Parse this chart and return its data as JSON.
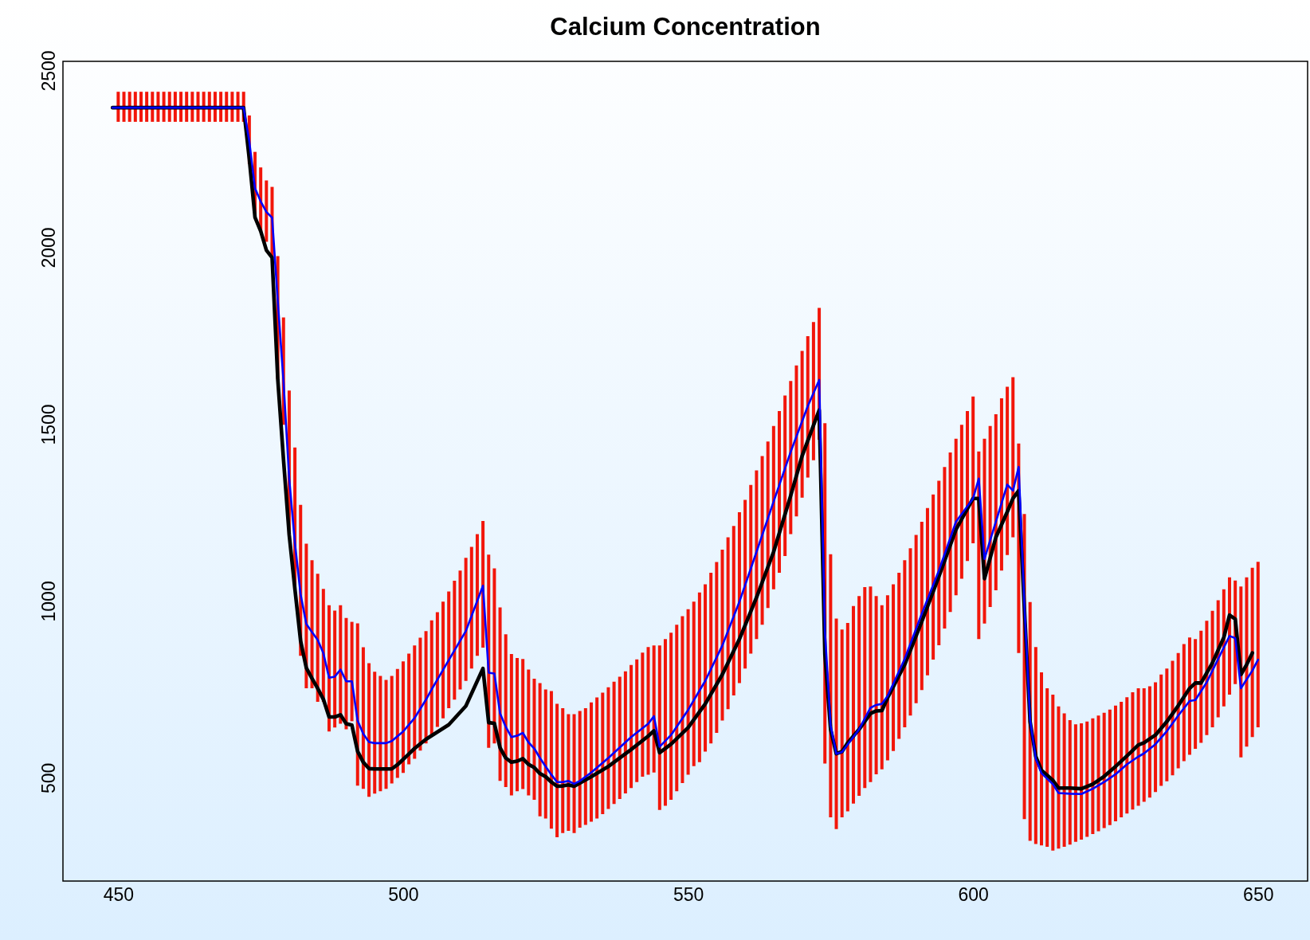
{
  "chart_data": {
    "type": "line",
    "title": "Calcium Concentration",
    "xlim": [
      441,
      658
    ],
    "ylim": [
      208,
      2526
    ],
    "xticks": [
      450,
      500,
      550,
      600,
      650
    ],
    "yticks": [
      500,
      1000,
      1500,
      2000,
      2500
    ],
    "grid": false,
    "marker": "none",
    "line_style": "solid",
    "series": [
      {
        "type": "bar",
        "color": "#f2160a",
        "x": [
          450,
          451,
          452,
          453,
          454,
          455,
          456,
          457,
          458,
          459,
          460,
          461,
          462,
          463,
          464,
          465,
          466,
          467,
          468,
          469,
          470,
          471,
          472,
          473,
          474,
          475,
          476,
          477,
          478,
          479,
          480,
          481,
          482,
          483,
          484,
          485,
          486,
          487,
          488,
          489,
          490,
          491,
          492,
          493,
          494,
          495,
          496,
          497,
          498,
          499,
          500,
          501,
          502,
          503,
          504,
          505,
          506,
          507,
          508,
          509,
          510,
          511,
          512,
          513,
          514,
          515,
          516,
          517,
          518,
          519,
          520,
          521,
          522,
          523,
          524,
          525,
          526,
          527,
          528,
          529,
          530,
          531,
          532,
          533,
          534,
          535,
          536,
          537,
          538,
          539,
          540,
          541,
          542,
          543,
          544,
          545,
          546,
          547,
          548,
          549,
          550,
          551,
          552,
          553,
          554,
          555,
          556,
          557,
          558,
          559,
          560,
          561,
          562,
          563,
          564,
          565,
          566,
          567,
          568,
          569,
          570,
          571,
          572,
          573,
          574,
          575,
          576,
          577,
          578,
          579,
          580,
          581,
          582,
          583,
          584,
          585,
          586,
          587,
          588,
          589,
          590,
          591,
          592,
          593,
          594,
          595,
          596,
          597,
          598,
          599,
          600,
          601,
          602,
          603,
          604,
          605,
          606,
          607,
          608,
          609,
          610,
          611,
          612,
          613,
          614,
          615,
          616,
          617,
          618,
          619,
          620,
          621,
          622,
          623,
          624,
          625,
          626,
          627,
          628,
          629,
          630,
          631,
          632,
          633,
          634,
          635,
          636,
          637,
          638,
          639,
          640,
          641,
          642,
          643,
          644,
          645,
          646,
          647,
          648,
          649,
          650
        ],
        "base": [
          2355,
          2355,
          2355,
          2355,
          2355,
          2355,
          2355,
          2355,
          2355,
          2355,
          2355,
          2355,
          2355,
          2355,
          2355,
          2355,
          2355,
          2355,
          2355,
          2355,
          2355,
          2355,
          2355,
          2236,
          2084,
          2046,
          2016,
          1971,
          1628,
          1498,
          1187,
          1034,
          845,
          753,
          753,
          715,
          715,
          631,
          642,
          653,
          637,
          660,
          478,
          469,
          446,
          455,
          462,
          469,
          484,
          500,
          514,
          538,
          554,
          577,
          597,
          621,
          644,
          668,
          697,
          721,
          750,
          774,
          809,
          845,
          868,
          585,
          597,
          491,
          474,
          450,
          462,
          468,
          450,
          438,
          391,
          385,
          356,
          332,
          344,
          350,
          344,
          359,
          367,
          376,
          385,
          397,
          412,
          426,
          440,
          456,
          471,
          488,
          503,
          509,
          515,
          409,
          421,
          438,
          462,
          485,
          509,
          533,
          544,
          574,
          597,
          627,
          662,
          694,
          733,
          768,
          809,
          851,
          892,
          933,
          980,
          1033,
          1080,
          1127,
          1189,
          1239,
          1292,
          1349,
          1398,
          1456,
          540,
          388,
          355,
          388,
          405,
          427,
          449,
          471,
          488,
          510,
          524,
          549,
          576,
          610,
          643,
          676,
          711,
          748,
          790,
          834,
          875,
          922,
          969,
          1016,
          1063,
          1113,
          1163,
          892,
          936,
          983,
          1030,
          1086,
          1130,
          1180,
          853,
          383,
          322,
          313,
          309,
          305,
          294,
          300,
          305,
          311,
          319,
          325,
          333,
          341,
          349,
          358,
          366,
          377,
          388,
          399,
          410,
          421,
          432,
          444,
          460,
          477,
          490,
          507,
          527,
          547,
          565,
          582,
          599,
          621,
          643,
          671,
          702,
          735,
          765,
          558,
          588,
          615,
          643
        ],
        "values": [
          85,
          85,
          85,
          85,
          85,
          85,
          85,
          85,
          85,
          85,
          85,
          85,
          85,
          85,
          85,
          85,
          85,
          85,
          85,
          85,
          85,
          85,
          85,
          137,
          186,
          180,
          173,
          200,
          347,
          304,
          408,
          400,
          427,
          409,
          362,
          362,
          319,
          357,
          331,
          335,
          315,
          281,
          459,
          400,
          378,
          345,
          326,
          308,
          304,
          308,
          315,
          313,
          320,
          319,
          318,
          324,
          324,
          330,
          330,
          336,
          336,
          348,
          344,
          344,
          358,
          546,
          495,
          491,
          432,
          400,
          377,
          368,
          356,
          342,
          377,
          365,
          389,
          377,
          353,
          330,
          336,
          330,
          330,
          337,
          342,
          344,
          344,
          346,
          346,
          345,
          348,
          347,
          351,
          361,
          359,
          465,
          471,
          472,
          471,
          472,
          468,
          465,
          480,
          473,
          483,
          483,
          483,
          486,
          479,
          483,
          477,
          477,
          477,
          477,
          471,
          462,
          457,
          454,
          433,
          427,
          415,
          400,
          391,
          373,
          963,
          744,
          595,
          531,
          533,
          559,
          565,
          568,
          553,
          504,
          464,
          467,
          471,
          470,
          472,
          473,
          476,
          476,
          473,
          467,
          465,
          457,
          451,
          443,
          435,
          424,
          415,
          531,
          523,
          512,
          498,
          487,
          476,
          453,
          592,
          863,
          675,
          557,
          489,
          448,
          441,
          402,
          377,
          352,
          332,
          329,
          326,
          327,
          327,
          326,
          327,
          327,
          327,
          329,
          332,
          332,
          321,
          315,
          310,
          315,
          319,
          324,
          326,
          331,
          332,
          310,
          317,
          323,
          329,
          331,
          331,
          332,
          293,
          483,
          479,
          479,
          468
        ]
      },
      {
        "color": "#000000",
        "x": [
          449,
          472,
          473,
          474,
          475,
          476,
          477,
          478,
          479,
          480,
          481,
          482,
          483,
          484,
          485,
          486,
          487,
          488,
          489,
          490,
          491,
          492,
          493,
          494,
          495,
          498,
          499,
          500,
          502,
          504,
          508,
          511,
          514,
          515,
          516,
          517,
          518,
          519,
          520,
          521,
          522,
          523,
          524,
          525,
          526,
          527,
          528,
          529,
          530,
          531,
          533,
          536,
          540,
          543,
          544,
          545,
          547,
          550,
          553,
          556,
          559,
          562,
          565,
          568,
          570,
          573,
          574,
          575,
          576,
          577,
          578,
          580,
          582,
          583,
          584,
          585,
          588,
          591,
          594,
          597,
          600,
          601,
          602,
          604,
          606,
          607,
          608,
          609,
          610,
          611,
          612,
          614,
          615,
          617,
          619,
          621,
          623,
          625,
          627,
          629,
          630,
          632,
          634,
          636,
          638,
          639,
          640,
          642,
          644,
          645,
          646,
          647,
          648,
          649
        ],
        "values": [
          2395,
          2395,
          2250,
          2085,
          2046,
          1992,
          1971,
          1626,
          1400,
          1187,
          1034,
          887,
          811,
          781,
          753,
          722,
          672,
          672,
          678,
          653,
          649,
          575,
          544,
          526,
          525,
          525,
          537,
          552,
          583,
          609,
          650,
          703,
          809,
          656,
          654,
          585,
          556,
          544,
          547,
          554,
          538,
          529,
          512,
          503,
          488,
          476,
          477,
          480,
          476,
          485,
          503,
          532,
          580,
          618,
          633,
          571,
          595,
          642,
          709,
          792,
          892,
          1010,
          1139,
          1298,
          1410,
          1540,
          848,
          637,
          568,
          574,
          599,
          637,
          682,
          689,
          690,
          726,
          820,
          942,
          1069,
          1202,
          1290,
          1290,
          1063,
          1180,
          1252,
          1290,
          1312,
          980,
          659,
          560,
          521,
          493,
          471,
          471,
          469,
          482,
          504,
          532,
          562,
          593,
          599,
          621,
          659,
          704,
          753,
          768,
          768,
          825,
          897,
          960,
          949,
          792,
          820,
          853
        ]
      },
      {
        "color": "#0000ff",
        "x": [
          449,
          472,
          473,
          474,
          475,
          476,
          477,
          478,
          479,
          480,
          481,
          482,
          483,
          484,
          485,
          486,
          487,
          488,
          489,
          490,
          491,
          492,
          493,
          494,
          495,
          497,
          498,
          500,
          502,
          504,
          505,
          508,
          511,
          514,
          515,
          516,
          517,
          518,
          519,
          520,
          521,
          522,
          523,
          524,
          525,
          526,
          527,
          528,
          529,
          530,
          531,
          533,
          536,
          540,
          543,
          544,
          545,
          547,
          550,
          553,
          556,
          559,
          562,
          565,
          568,
          571,
          573,
          574,
          575,
          576,
          577,
          580,
          582,
          583,
          584,
          585,
          588,
          591,
          594,
          597,
          600,
          601,
          602,
          604,
          606,
          607,
          608,
          609,
          610,
          611,
          612,
          614,
          615,
          617,
          619,
          621,
          623,
          625,
          627,
          629,
          630,
          632,
          634,
          636,
          638,
          639,
          641,
          643,
          645,
          646,
          647,
          649,
          650
        ],
        "values": [
          2395,
          2395,
          2300,
          2167,
          2130,
          2100,
          2084,
          1847,
          1621,
          1347,
          1164,
          1019,
          935,
          912,
          890,
          852,
          783,
          786,
          806,
          773,
          773,
          662,
          624,
          601,
          598,
          598,
          604,
          631,
          669,
          721,
          750,
          833,
          915,
          1043,
          797,
          795,
          682,
          644,
          615,
          619,
          627,
          600,
          583,
          556,
          532,
          509,
          488,
          488,
          491,
          483,
          491,
          515,
          556,
          615,
          653,
          674,
          588,
          621,
          692,
          774,
          874,
          998,
          1139,
          1281,
          1422,
          1551,
          1625,
          914,
          648,
          568,
          573,
          637,
          698,
          706,
          709,
          731,
          836,
          964,
          1086,
          1224,
          1290,
          1346,
          1119,
          1224,
          1329,
          1312,
          1379,
          991,
          665,
          554,
          513,
          482,
          457,
          455,
          454,
          469,
          488,
          510,
          538,
          560,
          569,
          595,
          632,
          676,
          717,
          720,
          770,
          836,
          901,
          895,
          753,
          803,
          834
        ]
      }
    ]
  }
}
